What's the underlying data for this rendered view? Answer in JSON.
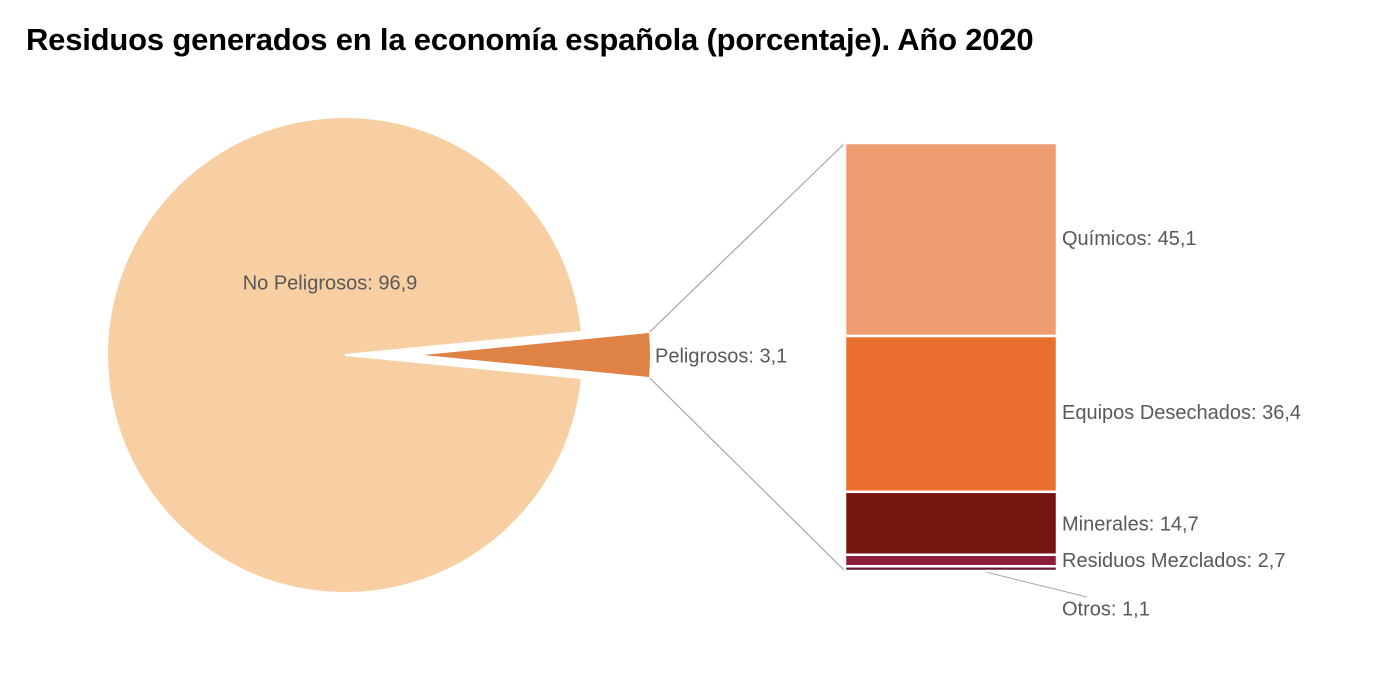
{
  "chart_data": {
    "type": "pie",
    "title": "Residuos generados en la economía española (porcentaje). Año 2020",
    "pie": {
      "slices": [
        {
          "label": "No Peligrosos: 96,9",
          "value": 96.9,
          "color": "#F7CFA2"
        },
        {
          "label": "Peligrosos: 3,1",
          "value": 3.1,
          "color": "#DE8245"
        }
      ]
    },
    "breakdown": {
      "of": "Peligrosos",
      "segments": [
        {
          "label": "Químicos: 45,1",
          "value": 45.1,
          "color": "#EE9D72"
        },
        {
          "label": "Equipos Desechados: 36,4",
          "value": 36.4,
          "color": "#EA6F2E"
        },
        {
          "label": "Minerales: 14,7",
          "value": 14.7,
          "color": "#75150F"
        },
        {
          "label": "Residuos Mezclados: 2,7",
          "value": 2.7,
          "color": "#8B1E3A"
        },
        {
          "label": "Otros: 1,1",
          "value": 1.1,
          "color": "#6A1530"
        }
      ]
    }
  }
}
